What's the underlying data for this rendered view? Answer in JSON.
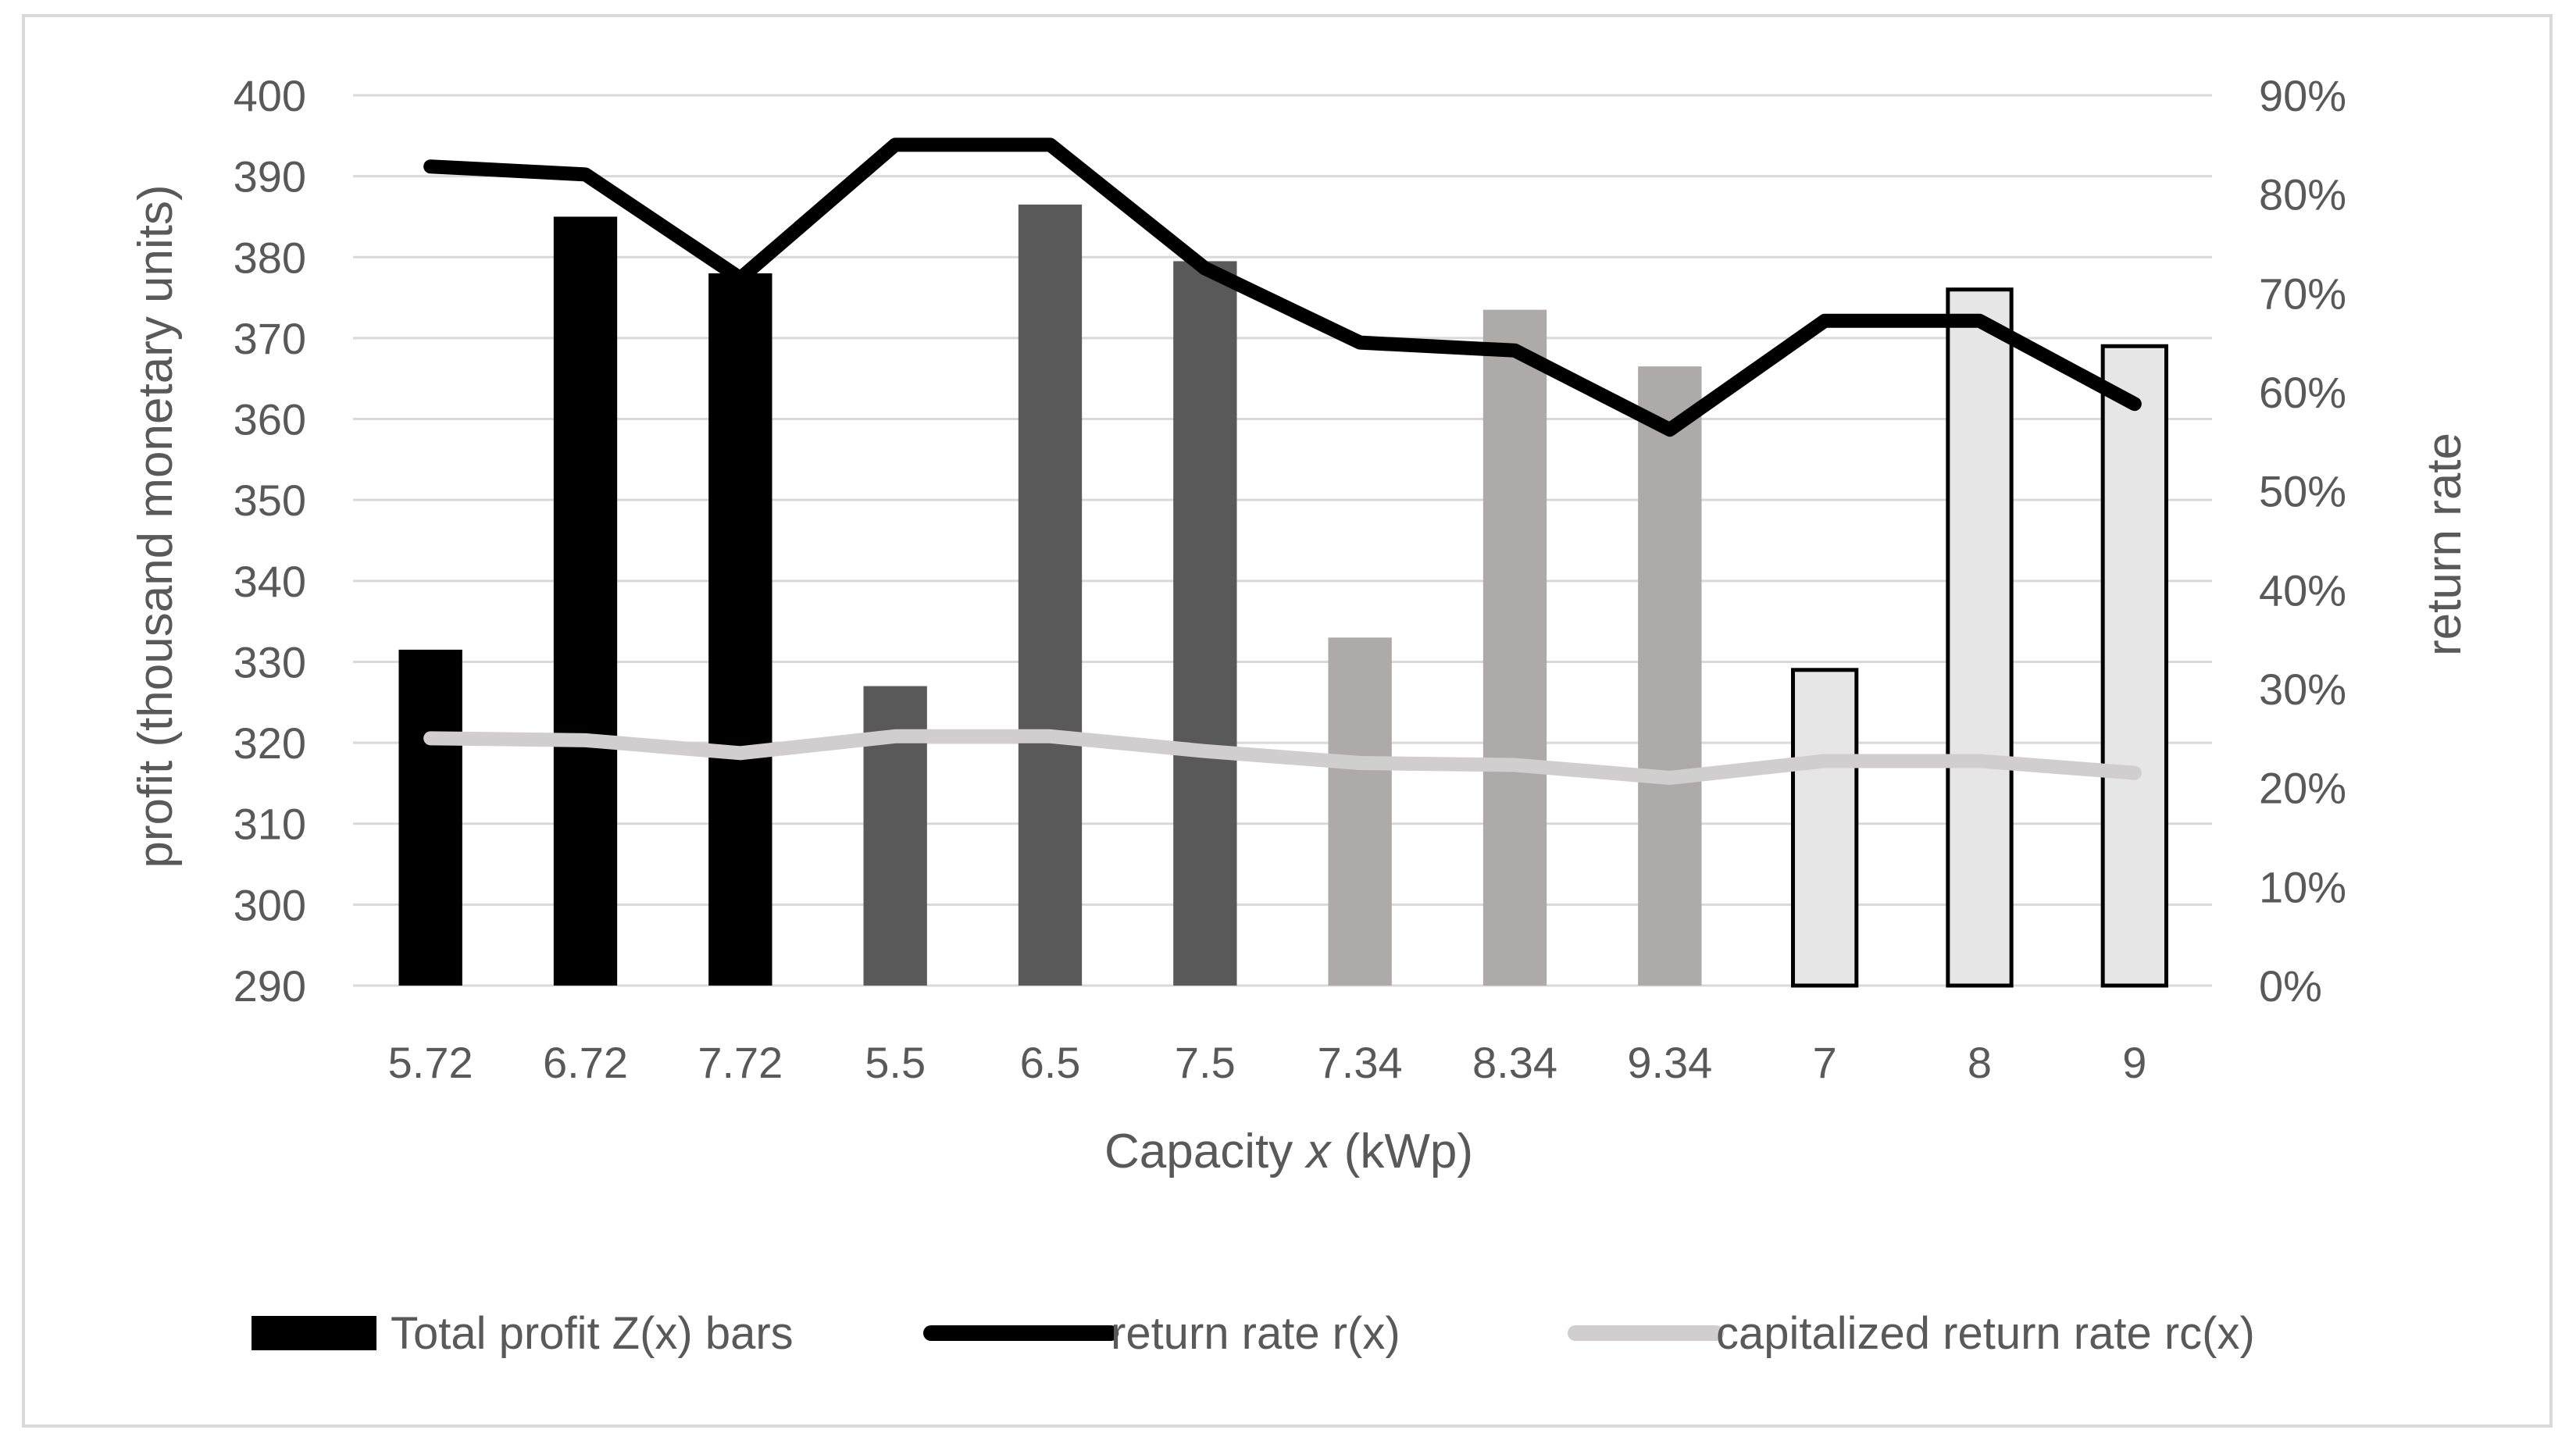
{
  "chart_data": {
    "type": "bar",
    "title": "",
    "categories": [
      "5.72",
      "6.72",
      "7.72",
      "5.5",
      "6.5",
      "7.5",
      "7.34",
      "8.34",
      "9.34",
      "7",
      "8",
      "9"
    ],
    "bar_groups": [
      {
        "indices": [
          0,
          1,
          2
        ],
        "fill": "#000000",
        "stroke": "#000000"
      },
      {
        "indices": [
          3,
          4,
          5
        ],
        "fill": "#595959",
        "stroke": "#595959"
      },
      {
        "indices": [
          6,
          7,
          8
        ],
        "fill": "#aeaaaa",
        "stroke": "#aeaaaa"
      },
      {
        "indices": [
          9,
          10,
          11
        ],
        "fill": "#e7e6e6",
        "stroke": "#000000"
      }
    ],
    "series": [
      {
        "name": "Total profit Z(x) bars",
        "kind": "bar",
        "axis": "left",
        "color": "#000000",
        "values": [
          331.5,
          385,
          378,
          327,
          386.5,
          379.5,
          333,
          373.5,
          366.5,
          329,
          376,
          369
        ]
      },
      {
        "name": "return rate r(x)",
        "kind": "line",
        "axis": "right",
        "color": "#000000",
        "values": [
          0.828,
          0.82,
          0.715,
          0.85,
          0.85,
          0.725,
          0.65,
          0.642,
          0.562,
          0.672,
          0.672,
          0.588
        ]
      },
      {
        "name": "capitalized return rate rc(x)",
        "kind": "line",
        "axis": "right",
        "color": "#d0cece",
        "values": [
          0.25,
          0.248,
          0.235,
          0.252,
          0.252,
          0.237,
          0.225,
          0.223,
          0.21,
          0.227,
          0.227,
          0.215
        ]
      }
    ],
    "xlabel": "Capacity x (kWp)",
    "xlabel_parts": {
      "before": "Capacity ",
      "italic": "x",
      "after": " (kWp)"
    },
    "ylabel": "profit (thousand monetary units)",
    "y2label": "return rate",
    "ylim": [
      290,
      400
    ],
    "y2lim": [
      0,
      0.9
    ],
    "yticks": [
      "290",
      "300",
      "310",
      "320",
      "330",
      "340",
      "350",
      "360",
      "370",
      "380",
      "390",
      "400"
    ],
    "y2ticks": [
      "0%",
      "10%",
      "20%",
      "30%",
      "40%",
      "50%",
      "60%",
      "70%",
      "80%",
      "90%"
    ],
    "grid": true,
    "legend_position": "bottom"
  }
}
